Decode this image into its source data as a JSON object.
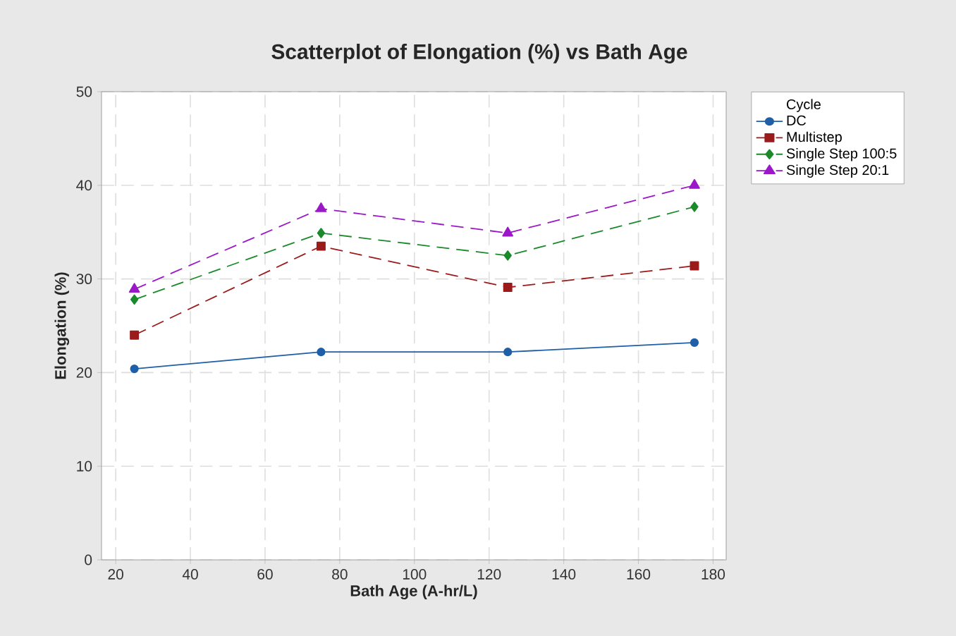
{
  "chart_data": {
    "type": "line",
    "title": "Scatterplot of Elongation (%) vs Bath Age",
    "xlabel": "Bath Age (A-hr/L)",
    "ylabel": "Elongation (%)",
    "legend_title": "Cycle",
    "x": [
      25,
      75,
      125,
      175
    ],
    "series": [
      {
        "name": "DC",
        "color": "#1f5fa8",
        "marker": "circle",
        "line_style": "solid",
        "values": [
          20.4,
          22.2,
          22.2,
          23.2
        ]
      },
      {
        "name": "Multistep",
        "color": "#9b1b1b",
        "marker": "square",
        "line_style": "dashed",
        "values": [
          24.0,
          33.5,
          29.1,
          31.4
        ]
      },
      {
        "name": "Single Step 100:5",
        "color": "#1a8a2a",
        "marker": "diamond",
        "line_style": "dashed",
        "values": [
          27.8,
          34.9,
          32.5,
          37.7
        ]
      },
      {
        "name": "Single Step 20:1",
        "color": "#9b18c8",
        "marker": "triangle",
        "line_style": "dashed",
        "values": [
          28.9,
          37.5,
          34.9,
          40.0
        ]
      }
    ],
    "xlim": [
      16.2,
      183.5
    ],
    "ylim": [
      0,
      50
    ],
    "xticks": [
      20,
      40,
      60,
      80,
      100,
      120,
      140,
      160,
      180
    ],
    "yticks": [
      0,
      10,
      20,
      30,
      40,
      50
    ],
    "grid": true,
    "legend": "top right"
  }
}
